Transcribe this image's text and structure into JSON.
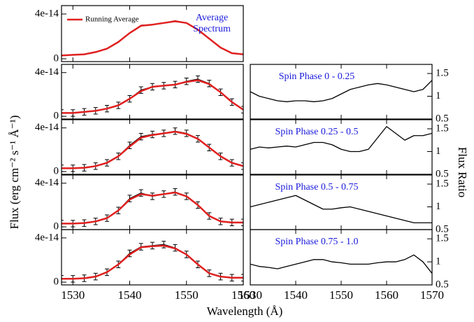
{
  "figure": {
    "x_label": "Wavelength (Å)",
    "y_label": "Flux (erg cm⁻² s⁻¹ Å⁻¹)",
    "y2_label": "Flux Ratio"
  },
  "chart_data": [
    {
      "type": "line",
      "annotation": "Average Spectrum",
      "legend": "upper left",
      "x": [
        1528,
        1530,
        1532,
        1534,
        1536,
        1538,
        1540,
        1542,
        1544,
        1546,
        1548,
        1550,
        1552,
        1554,
        1556,
        1558,
        1560
      ],
      "series": [
        {
          "color": "#000000",
          "values": [
            3e-15,
            3.5e-15,
            4e-15,
            6e-15,
            9e-15,
            1.5e-14,
            2.3e-14,
            3e-14,
            3.05e-14,
            3.2e-14,
            3.4e-14,
            3.2e-14,
            2.6e-14,
            1.8e-14,
            1e-14,
            5e-15,
            4e-15
          ]
        },
        {
          "name": "Running Average",
          "color": "#e02020",
          "values": [
            3e-15,
            3.5e-15,
            4e-15,
            6e-15,
            9e-15,
            1.5e-14,
            2.3e-14,
            2.95e-14,
            3.05e-14,
            3.2e-14,
            3.35e-14,
            3.2e-14,
            2.6e-14,
            1.8e-14,
            1e-14,
            5e-15,
            4e-15
          ]
        }
      ],
      "xlim": [
        1528,
        1560
      ],
      "xticks": [
        1530,
        1540,
        1550,
        1560
      ],
      "ylim": [
        -2.5e-15,
        4.75e-14
      ],
      "yticks": [
        0,
        4e-14
      ]
    },
    {
      "type": "line",
      "x": [
        1528,
        1530,
        1532,
        1534,
        1536,
        1538,
        1540,
        1542,
        1544,
        1546,
        1548,
        1550,
        1552,
        1554,
        1556,
        1558,
        1560
      ],
      "series": [
        {
          "color": "#000000",
          "error": 3e-15,
          "values": [
            3e-15,
            3e-15,
            4e-15,
            5e-15,
            7e-15,
            1e-14,
            1.6e-14,
            2.4e-14,
            2.7e-14,
            2.8e-14,
            2.9e-14,
            3.2e-14,
            3.4e-14,
            3e-14,
            2.2e-14,
            1.3e-14,
            6e-15
          ]
        },
        {
          "color": "#e02020",
          "values": [
            3e-15,
            3e-15,
            4e-15,
            5e-15,
            7e-15,
            1e-14,
            1.6e-14,
            2.3e-14,
            2.7e-14,
            2.8e-14,
            2.9e-14,
            3.15e-14,
            3.3e-14,
            2.95e-14,
            2.2e-14,
            1.3e-14,
            6e-15
          ]
        }
      ],
      "xlim": [
        1528,
        1560
      ],
      "xticks": [
        1530,
        1540,
        1550,
        1560
      ],
      "ylim": [
        -2.5e-15,
        4.75e-14
      ],
      "yticks": [
        0,
        4e-14
      ]
    },
    {
      "type": "line",
      "x": [
        1528,
        1530,
        1532,
        1534,
        1536,
        1538,
        1540,
        1542,
        1544,
        1546,
        1548,
        1550,
        1552,
        1554,
        1556,
        1558,
        1560
      ],
      "series": [
        {
          "color": "#000000",
          "error": 3e-15,
          "values": [
            3e-15,
            3e-15,
            3.5e-15,
            5e-15,
            8e-15,
            1.4e-14,
            2.4e-14,
            3.2e-14,
            3.4e-14,
            3.5e-14,
            3.7e-14,
            3.5e-14,
            3e-14,
            2.2e-14,
            1.4e-14,
            8e-15,
            5e-15
          ]
        },
        {
          "color": "#e02020",
          "values": [
            3e-15,
            3e-15,
            3.5e-15,
            5e-15,
            8e-15,
            1.4e-14,
            2.3e-14,
            3.1e-14,
            3.35e-14,
            3.5e-14,
            3.65e-14,
            3.45e-14,
            3e-14,
            2.2e-14,
            1.4e-14,
            8e-15,
            5e-15
          ]
        }
      ],
      "xlim": [
        1528,
        1560
      ],
      "xticks": [
        1530,
        1540,
        1550,
        1560
      ],
      "ylim": [
        -2.5e-15,
        4.75e-14
      ],
      "yticks": [
        0,
        4e-14
      ]
    },
    {
      "type": "line",
      "x": [
        1528,
        1530,
        1532,
        1534,
        1536,
        1538,
        1540,
        1542,
        1544,
        1546,
        1548,
        1550,
        1552,
        1554,
        1556,
        1558,
        1560
      ],
      "series": [
        {
          "color": "#000000",
          "error": 3e-15,
          "values": [
            3e-15,
            3e-15,
            3.5e-15,
            5e-15,
            8e-15,
            1.5e-14,
            2.6e-14,
            3.1e-14,
            2.8e-14,
            3e-14,
            3.2e-14,
            2.8e-14,
            2e-14,
            1e-14,
            5e-15,
            4e-15,
            4e-15
          ]
        },
        {
          "color": "#e02020",
          "values": [
            3e-15,
            3e-15,
            3.5e-15,
            5e-15,
            8e-15,
            1.5e-14,
            2.5e-14,
            3e-14,
            2.85e-14,
            3e-14,
            3.15e-14,
            2.8e-14,
            2e-14,
            1e-14,
            5e-15,
            4e-15,
            4e-15
          ]
        }
      ],
      "xlim": [
        1528,
        1560
      ],
      "xticks": [
        1530,
        1540,
        1550,
        1560
      ],
      "ylim": [
        -2.5e-15,
        4.75e-14
      ],
      "yticks": [
        0,
        4e-14
      ]
    },
    {
      "type": "line",
      "x": [
        1528,
        1530,
        1532,
        1534,
        1536,
        1538,
        1540,
        1542,
        1544,
        1546,
        1548,
        1550,
        1552,
        1554,
        1556,
        1558,
        1560
      ],
      "series": [
        {
          "color": "#000000",
          "error": 3e-15,
          "values": [
            3e-15,
            3e-15,
            3.5e-15,
            5e-15,
            9e-15,
            1.6e-14,
            2.6e-14,
            3.2e-14,
            3.3e-14,
            3.4e-14,
            3.1e-14,
            2.5e-14,
            1.6e-14,
            8e-15,
            5e-15,
            4e-15,
            4e-15
          ]
        },
        {
          "color": "#e02020",
          "values": [
            3e-15,
            3e-15,
            3.5e-15,
            5e-15,
            9e-15,
            1.6e-14,
            2.5e-14,
            3.15e-14,
            3.25e-14,
            3.3e-14,
            3.05e-14,
            2.5e-14,
            1.6e-14,
            8e-15,
            5e-15,
            4e-15,
            4e-15
          ]
        }
      ],
      "xlim": [
        1528,
        1560
      ],
      "xticks": [
        1530,
        1540,
        1550,
        1560
      ],
      "ylim": [
        -2.5e-15,
        4.75e-14
      ],
      "yticks": [
        0,
        4e-14
      ]
    },
    {
      "type": "line",
      "annotation": "Spin Phase 0 - 0.25",
      "x": [
        1530,
        1532,
        1534,
        1536,
        1538,
        1540,
        1542,
        1544,
        1546,
        1548,
        1550,
        1552,
        1554,
        1556,
        1558,
        1560,
        1562,
        1564,
        1566,
        1568,
        1570
      ],
      "series": [
        {
          "color": "#000000",
          "values": [
            1.1,
            1.0,
            0.95,
            0.9,
            0.88,
            0.9,
            0.9,
            0.88,
            0.9,
            0.95,
            1.05,
            1.15,
            1.2,
            1.25,
            1.28,
            1.25,
            1.2,
            1.15,
            1.1,
            1.15,
            1.35
          ]
        }
      ],
      "xlim": [
        1530,
        1570
      ],
      "xticks": [
        1530,
        1540,
        1550,
        1560,
        1570
      ],
      "ylim": [
        0.5,
        1.7
      ],
      "yticks": [
        0.5,
        1,
        1.5
      ]
    },
    {
      "type": "line",
      "annotation": "Spin Phase 0.25 - 0.5",
      "x": [
        1530,
        1532,
        1534,
        1536,
        1538,
        1540,
        1542,
        1544,
        1546,
        1548,
        1550,
        1552,
        1554,
        1556,
        1558,
        1560,
        1562,
        1564,
        1566,
        1568,
        1570
      ],
      "series": [
        {
          "color": "#000000",
          "values": [
            1.05,
            1.1,
            1.08,
            1.1,
            1.12,
            1.1,
            1.15,
            1.2,
            1.2,
            1.15,
            1.05,
            1.0,
            1.0,
            1.05,
            1.3,
            1.55,
            1.4,
            1.25,
            1.35,
            1.35,
            1.4
          ]
        }
      ],
      "xlim": [
        1530,
        1570
      ],
      "xticks": [
        1530,
        1540,
        1550,
        1560,
        1570
      ],
      "ylim": [
        0.5,
        1.7
      ],
      "yticks": [
        0.5,
        1,
        1.5
      ]
    },
    {
      "type": "line",
      "annotation": "Spin Phase 0.5 - 0.75",
      "x": [
        1530,
        1532,
        1534,
        1536,
        1538,
        1540,
        1542,
        1544,
        1546,
        1548,
        1550,
        1552,
        1554,
        1556,
        1558,
        1560,
        1562,
        1564,
        1566,
        1568,
        1570
      ],
      "series": [
        {
          "color": "#000000",
          "values": [
            1.0,
            1.05,
            1.1,
            1.15,
            1.2,
            1.25,
            1.15,
            1.05,
            0.95,
            0.95,
            0.98,
            1.0,
            0.95,
            0.9,
            0.85,
            0.8,
            0.75,
            0.7,
            0.65,
            0.65,
            0.65
          ]
        }
      ],
      "xlim": [
        1530,
        1570
      ],
      "xticks": [
        1530,
        1540,
        1550,
        1560,
        1570
      ],
      "ylim": [
        0.5,
        1.7
      ],
      "yticks": [
        0.5,
        1,
        1.5
      ]
    },
    {
      "type": "line",
      "annotation": "Spin Phase 0.75 - 1.0",
      "x": [
        1530,
        1532,
        1534,
        1536,
        1538,
        1540,
        1542,
        1544,
        1546,
        1548,
        1550,
        1552,
        1554,
        1556,
        1558,
        1560,
        1562,
        1564,
        1566,
        1568,
        1570
      ],
      "series": [
        {
          "color": "#000000",
          "values": [
            0.95,
            0.9,
            0.88,
            0.85,
            0.9,
            0.95,
            1.0,
            1.05,
            1.05,
            1.0,
            0.98,
            0.95,
            0.95,
            0.95,
            0.98,
            1.0,
            1.0,
            1.05,
            1.15,
            1.0,
            0.75
          ]
        }
      ],
      "xlim": [
        1530,
        1570
      ],
      "xticks": [
        1530,
        1540,
        1550,
        1560,
        1570
      ],
      "ylim": [
        0.5,
        1.7
      ],
      "yticks": [
        0.5,
        1,
        1.5
      ]
    }
  ]
}
